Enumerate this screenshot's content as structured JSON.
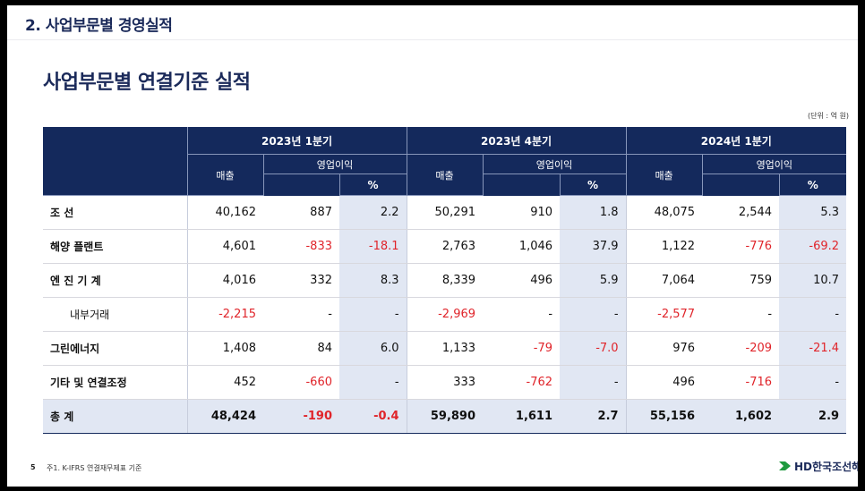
{
  "header": {
    "section_title": "2. 사업부문별 경영실적",
    "main_title": "사업부문별 연결기준 실적",
    "unit": "(단위 : 억 원)"
  },
  "table": {
    "periods": [
      "2023년 1분기",
      "2023년 4분기",
      "2024년 1분기"
    ],
    "sales_label": "매출",
    "op_label": "영업이익",
    "pct_label": "%",
    "rows": [
      {
        "label": "조      선",
        "values": [
          "40,162",
          "887",
          "2.2",
          "50,291",
          "910",
          "1.8",
          "48,075",
          "2,544",
          "5.3"
        ]
      },
      {
        "label": "해양 플랜트",
        "values": [
          "4,601",
          "-833",
          "-18.1",
          "2,763",
          "1,046",
          "37.9",
          "1,122",
          "-776",
          "-69.2"
        ]
      },
      {
        "label": "엔 진 기 계",
        "values": [
          "4,016",
          "332",
          "8.3",
          "8,339",
          "496",
          "5.9",
          "7,064",
          "759",
          "10.7"
        ]
      },
      {
        "label": "내부거래",
        "indent": true,
        "values": [
          "-2,215",
          "-",
          "-",
          "-2,969",
          "-",
          "-",
          "-2,577",
          "-",
          "-"
        ]
      },
      {
        "label": "그린에너지",
        "values": [
          "1,408",
          "84",
          "6.0",
          "1,133",
          "-79",
          "-7.0",
          "976",
          "-209",
          "-21.4"
        ]
      },
      {
        "label": "기타 및 연결조정",
        "values": [
          "452",
          "-660",
          "-",
          "333",
          "-762",
          "-",
          "496",
          "-716",
          "-"
        ]
      }
    ],
    "total": {
      "label": "총        계",
      "values": [
        "48,424",
        "-190",
        "-0.4",
        "59,890",
        "1,611",
        "2.7",
        "55,156",
        "1,602",
        "2.9"
      ]
    }
  },
  "footer": {
    "page_number": "5",
    "note": "주1. K-IFRS 연결재무제표 기준",
    "logo_text": "HD한국조선해양",
    "logo_icon": "hd-arrow-logo-icon",
    "logo_color": "#1f9a3f"
  }
}
